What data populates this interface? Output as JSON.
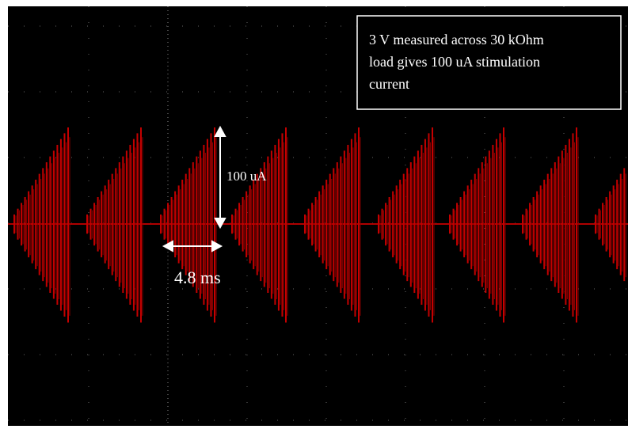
{
  "note": {
    "lines": [
      "3 V measured across 30 kOhm",
      "load gives 100 uA stimulation",
      "current"
    ]
  },
  "amplitude_label": "100 uA",
  "time_label": "4.8 ms"
}
